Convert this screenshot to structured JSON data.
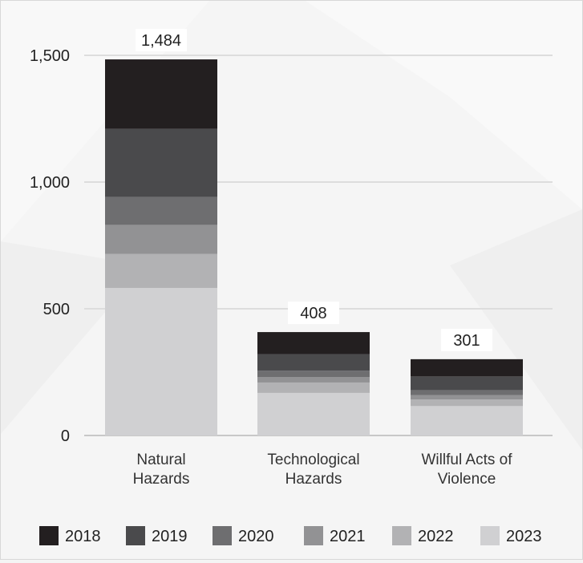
{
  "chart_data": {
    "type": "bar",
    "stacked": true,
    "title": "",
    "xlabel": "",
    "ylabel": "",
    "ylim": [
      0,
      1500
    ],
    "yticks": [
      0,
      500,
      1000,
      1500
    ],
    "ytick_labels": [
      "0",
      "500",
      "1,000",
      "1,500"
    ],
    "grid": true,
    "legend_position": "bottom",
    "categories": [
      [
        "Natural",
        "Hazards"
      ],
      [
        "Technological",
        "Hazards"
      ],
      [
        "Willful Acts of",
        "Violence"
      ]
    ],
    "totals": [
      1484,
      408,
      301
    ],
    "total_labels": [
      "1,484",
      "408",
      "301"
    ],
    "series": [
      {
        "name": "2023",
        "color": "#d0d0d2",
        "values": [
          582,
          168,
          116
        ]
      },
      {
        "name": "2022",
        "color": "#b2b2b4",
        "values": [
          134,
          41,
          26
        ]
      },
      {
        "name": "2021",
        "color": "#929294",
        "values": [
          115,
          21,
          17
        ]
      },
      {
        "name": "2020",
        "color": "#6e6e70",
        "values": [
          110,
          26,
          20
        ]
      },
      {
        "name": "2019",
        "color": "#4a4a4c",
        "values": [
          269,
          65,
          54
        ]
      },
      {
        "name": "2018",
        "color": "#231f20",
        "values": [
          274,
          87,
          68
        ]
      }
    ],
    "legend_order": [
      "2018",
      "2019",
      "2020",
      "2021",
      "2022",
      "2023"
    ]
  }
}
